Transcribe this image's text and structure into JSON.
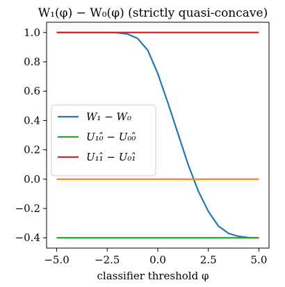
{
  "chart_data": {
    "type": "line",
    "title": "W₁(φ) − W₀(φ) (strictly quasi-concave)",
    "xlabel": "classifier threshold φ",
    "ylabel": "",
    "xlim": [
      -5.5,
      5.5
    ],
    "ylim": [
      -0.47,
      1.07
    ],
    "xticks": [
      -5.0,
      -2.5,
      0.0,
      2.5,
      5.0
    ],
    "xtick_labels": [
      "−5.0",
      "−2.5",
      "0.0",
      "2.5",
      "5.0"
    ],
    "yticks": [
      -0.4,
      -0.2,
      0.0,
      0.2,
      0.4,
      0.6,
      0.8,
      1.0
    ],
    "ytick_labels": [
      "−0.4",
      "−0.2",
      "0.0",
      "0.2",
      "0.4",
      "0.6",
      "0.8",
      "1.0"
    ],
    "grid": false,
    "legend_position": "center-left",
    "series": [
      {
        "name": "W₁ − W₀",
        "color": "#1f77b4",
        "x": [
          -5.0,
          -4.0,
          -3.0,
          -2.5,
          -2.0,
          -1.5,
          -1.0,
          -0.5,
          0.0,
          0.5,
          1.0,
          1.5,
          2.0,
          2.5,
          3.0,
          3.5,
          4.0,
          4.5,
          5.0
        ],
        "y": [
          1.0,
          1.0,
          1.0,
          1.0,
          0.998,
          0.99,
          0.96,
          0.88,
          0.72,
          0.52,
          0.31,
          0.1,
          -0.08,
          -0.22,
          -0.32,
          -0.37,
          -0.39,
          -0.398,
          -0.4
        ]
      },
      {
        "name": "U₁₀̂ − U₀₀̂",
        "color": "#2ca02c",
        "x": [
          -5.0,
          5.0
        ],
        "y": [
          -0.4,
          -0.4
        ]
      },
      {
        "name": "U₁₁̂ − U₀₁̂",
        "color": "#d62728",
        "x": [
          -5.0,
          5.0
        ],
        "y": [
          1.0,
          1.0
        ]
      },
      {
        "name": "",
        "color": "#ff7f0e",
        "x": [
          -5.0,
          5.0
        ],
        "y": [
          0.0,
          0.0
        ]
      }
    ]
  }
}
